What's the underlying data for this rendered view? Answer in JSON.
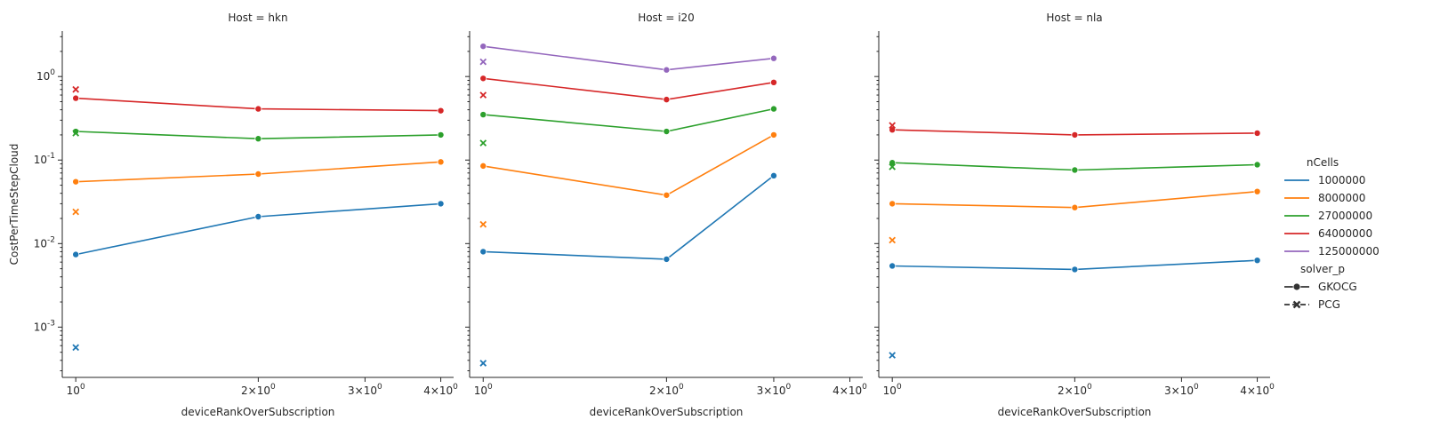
{
  "chart_data": {
    "type": "line",
    "facet_variable": "Host",
    "panels": [
      {
        "title": "Host = hkn",
        "x_tick_labels": [
          "10^0",
          "2×10^0",
          "3×10^0",
          "4×10^0"
        ],
        "series": [
          {
            "hue": "1000000",
            "style": "GKOCG",
            "points": [
              [
                1,
                0.0074
              ],
              [
                2,
                0.021
              ],
              [
                4,
                0.03
              ]
            ]
          },
          {
            "hue": "8000000",
            "style": "GKOCG",
            "points": [
              [
                1,
                0.055
              ],
              [
                2,
                0.068
              ],
              [
                4,
                0.095
              ]
            ]
          },
          {
            "hue": "27000000",
            "style": "GKOCG",
            "points": [
              [
                1,
                0.22
              ],
              [
                2,
                0.18
              ],
              [
                4,
                0.2
              ]
            ]
          },
          {
            "hue": "64000000",
            "style": "GKOCG",
            "points": [
              [
                1,
                0.55
              ],
              [
                2,
                0.41
              ],
              [
                4,
                0.39
              ]
            ]
          },
          {
            "hue": "1000000",
            "style": "PCG",
            "points": [
              [
                1,
                0.00057
              ]
            ]
          },
          {
            "hue": "8000000",
            "style": "PCG",
            "points": [
              [
                1,
                0.024
              ]
            ]
          },
          {
            "hue": "27000000",
            "style": "PCG",
            "points": [
              [
                1,
                0.21
              ]
            ]
          },
          {
            "hue": "64000000",
            "style": "PCG",
            "points": [
              [
                1,
                0.7
              ]
            ]
          }
        ]
      },
      {
        "title": "Host = i20",
        "x_tick_labels": [
          "10^0",
          "2×10^0",
          "3×10^0",
          "4×10^0"
        ],
        "series": [
          {
            "hue": "1000000",
            "style": "GKOCG",
            "points": [
              [
                1,
                0.008
              ],
              [
                2,
                0.0065
              ],
              [
                3,
                0.065
              ]
            ]
          },
          {
            "hue": "8000000",
            "style": "GKOCG",
            "points": [
              [
                1,
                0.085
              ],
              [
                2,
                0.038
              ],
              [
                3,
                0.2
              ]
            ]
          },
          {
            "hue": "27000000",
            "style": "GKOCG",
            "points": [
              [
                1,
                0.35
              ],
              [
                2,
                0.22
              ],
              [
                3,
                0.41
              ]
            ]
          },
          {
            "hue": "64000000",
            "style": "GKOCG",
            "points": [
              [
                1,
                0.95
              ],
              [
                2,
                0.53
              ],
              [
                3,
                0.85
              ]
            ]
          },
          {
            "hue": "125000000",
            "style": "GKOCG",
            "points": [
              [
                1,
                2.3
              ],
              [
                2,
                1.2
              ],
              [
                3,
                1.65
              ]
            ]
          },
          {
            "hue": "1000000",
            "style": "PCG",
            "points": [
              [
                1,
                0.00037
              ]
            ]
          },
          {
            "hue": "8000000",
            "style": "PCG",
            "points": [
              [
                1,
                0.017
              ]
            ]
          },
          {
            "hue": "27000000",
            "style": "PCG",
            "points": [
              [
                1,
                0.16
              ]
            ]
          },
          {
            "hue": "64000000",
            "style": "PCG",
            "points": [
              [
                1,
                0.6
              ]
            ]
          },
          {
            "hue": "125000000",
            "style": "PCG",
            "points": [
              [
                1,
                1.5
              ]
            ]
          }
        ]
      },
      {
        "title": "Host = nla",
        "x_tick_labels": [
          "10^0",
          "2×10^0",
          "3×10^0",
          "4×10^0"
        ],
        "series": [
          {
            "hue": "1000000",
            "style": "GKOCG",
            "points": [
              [
                1,
                0.0054
              ],
              [
                2,
                0.0049
              ],
              [
                4,
                0.0063
              ]
            ]
          },
          {
            "hue": "8000000",
            "style": "GKOCG",
            "points": [
              [
                1,
                0.03
              ],
              [
                2,
                0.027
              ],
              [
                4,
                0.042
              ]
            ]
          },
          {
            "hue": "27000000",
            "style": "GKOCG",
            "points": [
              [
                1,
                0.093
              ],
              [
                2,
                0.076
              ],
              [
                4,
                0.088
              ]
            ]
          },
          {
            "hue": "64000000",
            "style": "GKOCG",
            "points": [
              [
                1,
                0.23
              ],
              [
                2,
                0.2
              ],
              [
                4,
                0.21
              ]
            ]
          },
          {
            "hue": "1000000",
            "style": "PCG",
            "points": [
              [
                1,
                0.00046
              ]
            ]
          },
          {
            "hue": "8000000",
            "style": "PCG",
            "points": [
              [
                1,
                0.011
              ]
            ]
          },
          {
            "hue": "27000000",
            "style": "PCG",
            "points": [
              [
                1,
                0.083
              ]
            ]
          },
          {
            "hue": "64000000",
            "style": "PCG",
            "points": [
              [
                1,
                0.26
              ]
            ]
          }
        ]
      }
    ],
    "xlabel": "deviceRankOverSubscription",
    "ylabel": "CostPerTimeStepCloud",
    "xscale": "log",
    "yscale": "log",
    "xlim": [
      0.95,
      4.2
    ],
    "ylim": [
      0.00025,
      3.5
    ],
    "y_tick_labels": [
      "10^-3",
      "10^-2",
      "10^-1",
      "10^0"
    ],
    "grid": false,
    "legend": {
      "placement": "right",
      "hue_title": "nCells",
      "hue_entries": [
        {
          "label": "1000000",
          "color": "#1f77b4"
        },
        {
          "label": "8000000",
          "color": "#ff7f0e"
        },
        {
          "label": "27000000",
          "color": "#2ca02c"
        },
        {
          "label": "64000000",
          "color": "#d62728"
        },
        {
          "label": "125000000",
          "color": "#9467bd"
        }
      ],
      "style_title": "solver_p",
      "style_entries": [
        {
          "label": "GKOCG",
          "marker": "circle",
          "line": "solid"
        },
        {
          "label": "PCG",
          "marker": "x",
          "line": "dashed"
        }
      ]
    }
  }
}
